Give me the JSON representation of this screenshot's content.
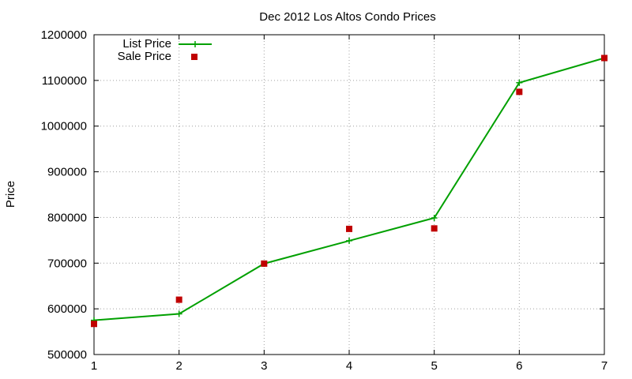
{
  "chart_data": {
    "type": "line",
    "title": "Dec 2012 Los Altos Condo Prices",
    "xlabel": "",
    "ylabel": "Price",
    "x": [
      1,
      2,
      3,
      4,
      5,
      6,
      7
    ],
    "xlim": [
      1,
      7
    ],
    "ylim": [
      500000,
      1200000
    ],
    "x_ticks": [
      "1",
      "2",
      "3",
      "4",
      "5",
      "6",
      "7"
    ],
    "y_ticks": [
      "500000",
      "600000",
      "700000",
      "800000",
      "900000",
      "1000000",
      "1100000",
      "1200000"
    ],
    "grid": true,
    "legend_position": "top-left",
    "series": [
      {
        "name": "List Price",
        "style": "line-with-plus-markers",
        "color": "#00a000",
        "values": [
          575000,
          589000,
          699000,
          749000,
          799000,
          1095000,
          1149000
        ]
      },
      {
        "name": "Sale Price",
        "style": "square-points",
        "color": "#c00000",
        "values": [
          567000,
          620000,
          699000,
          775000,
          776000,
          1075000,
          1149000
        ]
      }
    ]
  }
}
